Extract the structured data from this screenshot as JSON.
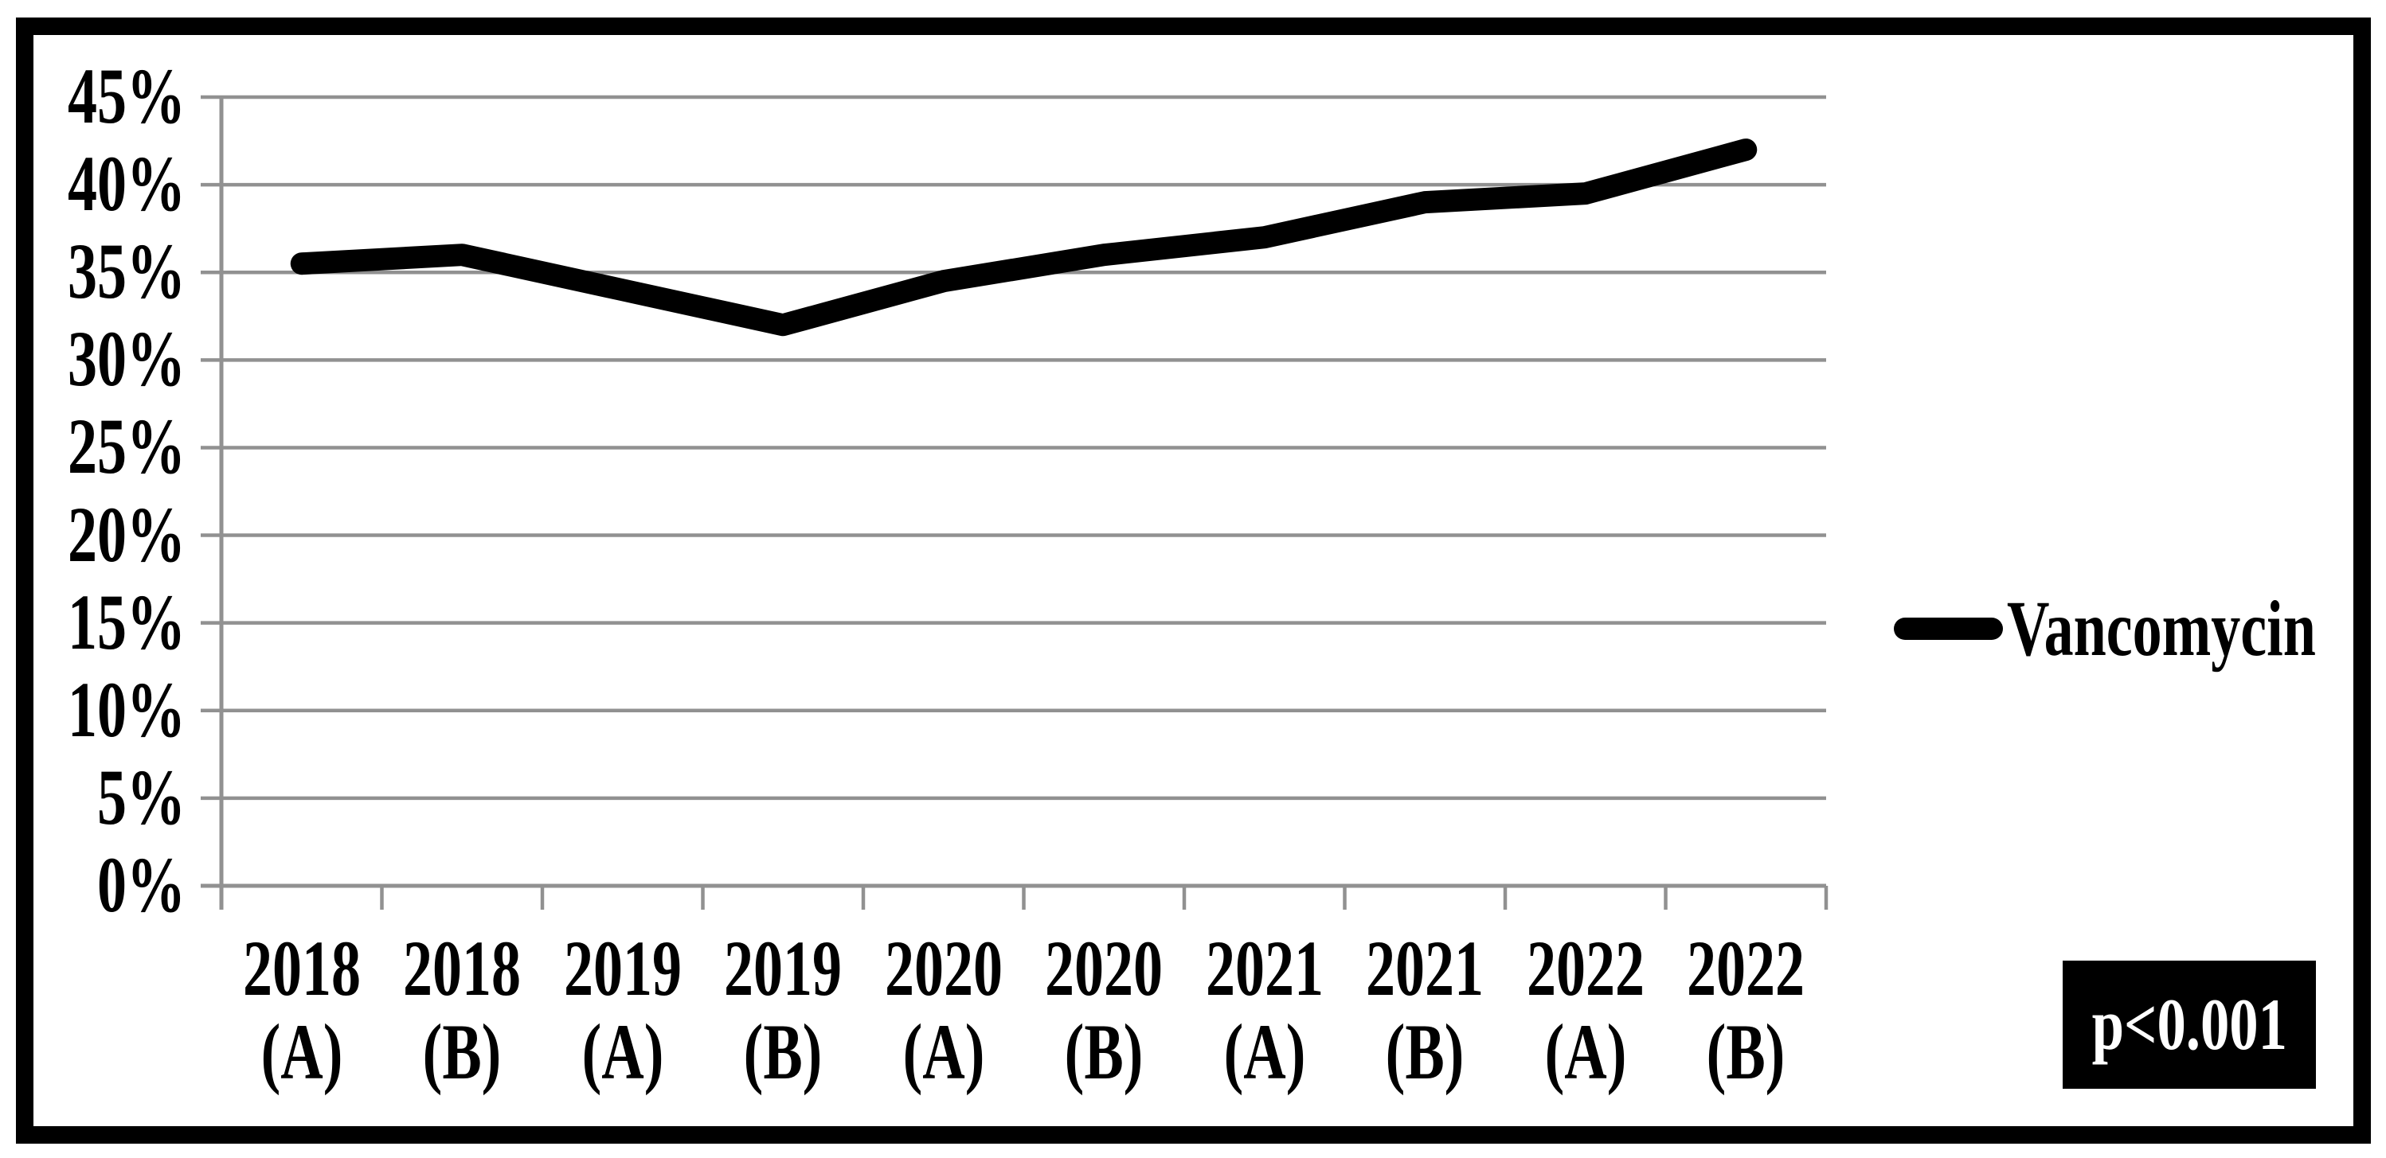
{
  "chart_data": {
    "type": "line",
    "title": "",
    "xlabel": "",
    "ylabel": "",
    "categories": [
      "2018 (A)",
      "2018 (B)",
      "2019 (A)",
      "2019 (B)",
      "2020 (A)",
      "2020 (B)",
      "2021 (A)",
      "2021 (B)",
      "2022 (A)",
      "2022 (B)"
    ],
    "x_tick_labels_two_line": [
      [
        "2018",
        "(A)"
      ],
      [
        "2018",
        "(B)"
      ],
      [
        "2019",
        "(A)"
      ],
      [
        "2019",
        "(B)"
      ],
      [
        "2020",
        "(A)"
      ],
      [
        "2020",
        "(B)"
      ],
      [
        "2021",
        "(A)"
      ],
      [
        "2021",
        "(B)"
      ],
      [
        "2022",
        "(A)"
      ],
      [
        "2022",
        "(B)"
      ]
    ],
    "series": [
      {
        "name": "Vancomycin",
        "color": "#000000",
        "values": [
          35.5,
          36,
          34,
          32,
          34.5,
          36,
          37,
          39,
          39.5,
          42
        ]
      }
    ],
    "ylim": [
      0,
      45
    ],
    "y_tick_step": 5,
    "y_tick_labels": [
      "0%",
      "5%",
      "10%",
      "15%",
      "20%",
      "25%",
      "30%",
      "35%",
      "40%",
      "45%"
    ],
    "grid": true,
    "gridline_color": "#919191",
    "legend_position": "right",
    "legend_entries": [
      "Vancomycin"
    ],
    "annotation": {
      "text": "p<0.001",
      "background": "#000000",
      "text_color": "#ffffff"
    }
  }
}
